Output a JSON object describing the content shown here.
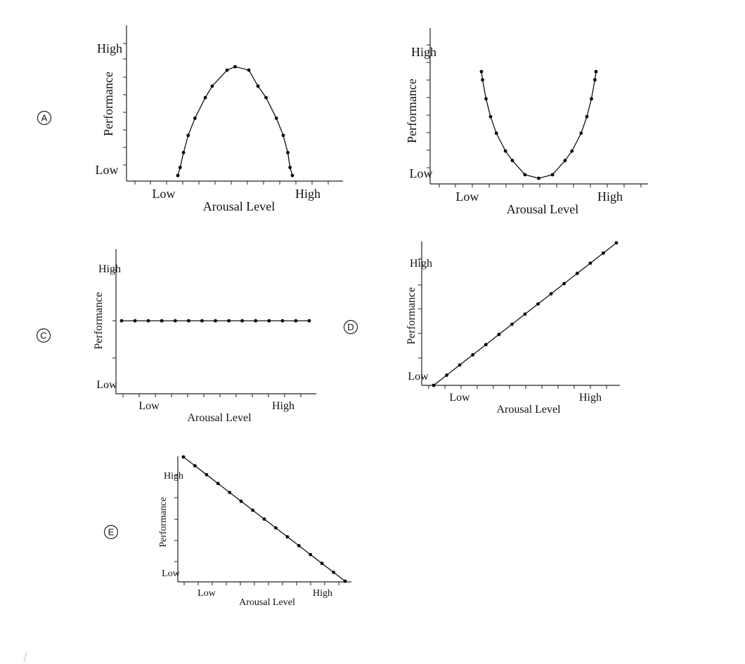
{
  "chart_data": [
    {
      "option": "A",
      "type": "scatter",
      "shape": "inverted-u",
      "xlabel": "Arousal Level",
      "ylabel": "Performance",
      "x_ticks": [
        "Low",
        "High"
      ],
      "y_ticks": [
        "Low",
        "High"
      ],
      "x": [
        0.0,
        0.02,
        0.05,
        0.09,
        0.15,
        0.24,
        0.3,
        0.43,
        0.5,
        0.62,
        0.7,
        0.77,
        0.86,
        0.92,
        0.96,
        0.98,
        1.0
      ],
      "y": [
        0.0,
        0.07,
        0.2,
        0.35,
        0.5,
        0.68,
        0.78,
        0.92,
        0.95,
        0.92,
        0.78,
        0.68,
        0.5,
        0.35,
        0.2,
        0.07,
        0.0
      ]
    },
    {
      "option": "B",
      "type": "scatter",
      "shape": "u",
      "xlabel": "Arousal Level",
      "ylabel": "Performance",
      "x_ticks": [
        "Low",
        "High"
      ],
      "y_ticks": [
        "Low",
        "High"
      ],
      "x": [
        0.0,
        0.01,
        0.04,
        0.08,
        0.13,
        0.21,
        0.27,
        0.38,
        0.5,
        0.62,
        0.73,
        0.79,
        0.87,
        0.92,
        0.96,
        0.99,
        1.0
      ],
      "y": [
        0.95,
        0.88,
        0.72,
        0.57,
        0.43,
        0.28,
        0.2,
        0.08,
        0.05,
        0.08,
        0.2,
        0.28,
        0.43,
        0.57,
        0.72,
        0.88,
        0.95
      ]
    },
    {
      "option": "C",
      "type": "scatter",
      "shape": "flat",
      "xlabel": "Arousal Level",
      "ylabel": "Performance",
      "x_ticks": [
        "Low",
        "High"
      ],
      "y_ticks": [
        "Low",
        "High"
      ],
      "x": [
        0,
        0.07143,
        0.14286,
        0.21429,
        0.28571,
        0.35714,
        0.42857,
        0.5,
        0.57143,
        0.64286,
        0.71429,
        0.78571,
        0.85714,
        0.92857,
        1
      ],
      "y": [
        0.5,
        0.5,
        0.5,
        0.5,
        0.5,
        0.5,
        0.5,
        0.5,
        0.5,
        0.5,
        0.5,
        0.5,
        0.5,
        0.5,
        0.5
      ]
    },
    {
      "option": "D",
      "type": "scatter",
      "shape": "increasing",
      "xlabel": "Arousal Level",
      "ylabel": "Performance",
      "x_ticks": [
        "Low",
        "High"
      ],
      "y_ticks": [
        "Low",
        "High"
      ],
      "x": [
        0,
        0.07143,
        0.14286,
        0.21429,
        0.28571,
        0.35714,
        0.42857,
        0.5,
        0.57143,
        0.64286,
        0.71429,
        0.78571,
        0.85714,
        0.92857,
        1
      ],
      "y": [
        0,
        0.07143,
        0.14286,
        0.21429,
        0.28571,
        0.35714,
        0.42857,
        0.5,
        0.57143,
        0.64286,
        0.71429,
        0.78571,
        0.85714,
        0.92857,
        1
      ]
    },
    {
      "option": "E",
      "type": "scatter",
      "shape": "decreasing",
      "xlabel": "Arousal Level",
      "ylabel": "Performance",
      "x_ticks": [
        "Low",
        "High"
      ],
      "y_ticks": [
        "Low",
        "High"
      ],
      "x": [
        0,
        0.07143,
        0.14286,
        0.21429,
        0.28571,
        0.35714,
        0.42857,
        0.5,
        0.57143,
        0.64286,
        0.71429,
        0.78571,
        0.85714,
        0.92857,
        1
      ],
      "y": [
        1,
        0.92857,
        0.85714,
        0.78571,
        0.71429,
        0.64286,
        0.57143,
        0.5,
        0.42857,
        0.35714,
        0.28571,
        0.21429,
        0.14286,
        0.07143,
        0
      ]
    }
  ]
}
